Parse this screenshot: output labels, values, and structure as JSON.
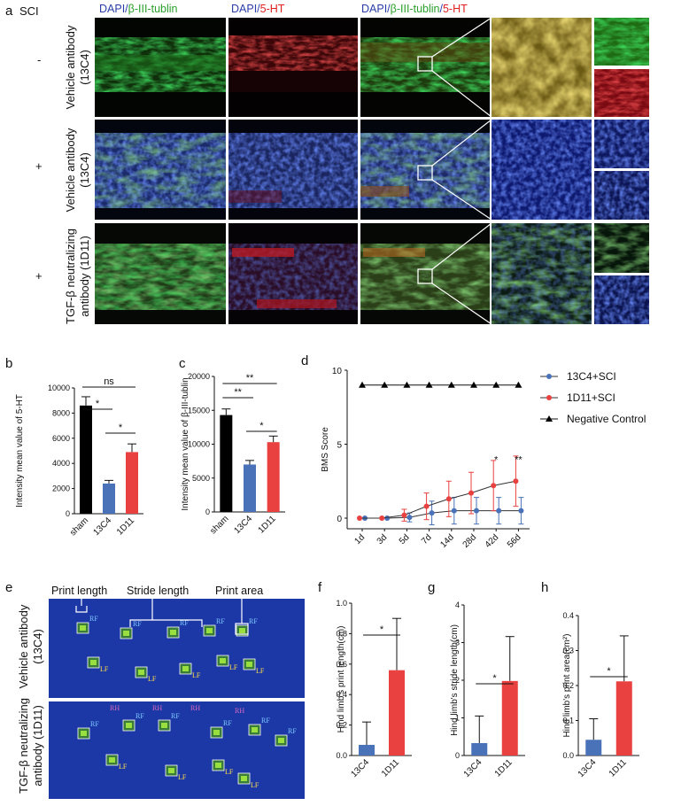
{
  "panel_letters": [
    "a",
    "b",
    "c",
    "d",
    "e",
    "f",
    "g",
    "h"
  ],
  "panel_a": {
    "sci_header": "SCI",
    "column_titles": [
      [
        {
          "text": "DAPI/",
          "color": "#2b3ea8"
        },
        {
          "text": "β-III-tublin",
          "color": "#2aa02a"
        }
      ],
      [
        {
          "text": "DAPI/",
          "color": "#2b3ea8"
        },
        {
          "text": "5-HT",
          "color": "#e02020"
        }
      ],
      [
        {
          "text": "DAPI/",
          "color": "#2b3ea8"
        },
        {
          "text": "β-III-tublin",
          "color": "#2aa02a"
        },
        {
          "text": "/",
          "color": "#2b3ea8"
        },
        {
          "text": "5-HT",
          "color": "#e02020"
        }
      ]
    ],
    "rows": [
      {
        "sci": "-",
        "label_lines": [
          "Vehicle antibody",
          "(13C4)"
        ]
      },
      {
        "sci": "+",
        "label_lines": [
          "Vehicle antibody",
          "(13C4)"
        ]
      },
      {
        "sci": "+",
        "label_lines": [
          "TGF-β neutralizing",
          "antibody (1D11)"
        ]
      }
    ]
  },
  "panel_e": {
    "annotations": [
      "Print length",
      "Stride length",
      "Print area"
    ],
    "row_labels": [
      [
        "Vehicle antibody",
        "(13C4)"
      ],
      [
        "TGF-β neutralizing",
        "antibody (1D11)"
      ]
    ],
    "paw_tags": {
      "rf": "RF",
      "lf": "LF",
      "rh": "RH"
    }
  },
  "colors": {
    "sham": "#000000",
    "c13C4": "#4a72b8",
    "c1D11": "#e8413f",
    "negative": "#000000",
    "track_bg": "#1c37a6"
  },
  "chart_data": [
    {
      "id": "b",
      "type": "bar",
      "ylabel": "Intensity mean value of 5-HT",
      "categories": [
        "sham",
        "13C4",
        "1D11"
      ],
      "values": [
        8600,
        2400,
        4900
      ],
      "errors": [
        700,
        250,
        650
      ],
      "ylim": [
        0,
        10000
      ],
      "yticks": [
        "0",
        "2000",
        "4000",
        "6000",
        "8000",
        "10000"
      ],
      "significance": [
        {
          "from": 0,
          "to": 1,
          "text": "*"
        },
        {
          "from": 1,
          "to": 2,
          "text": "*"
        },
        {
          "from": 0,
          "to": 2,
          "text": "ns"
        }
      ]
    },
    {
      "id": "c",
      "type": "bar",
      "ylabel": "Intensity mean value of β-III-tublin",
      "categories": [
        "sham",
        "13C4",
        "1D11"
      ],
      "values": [
        14300,
        7000,
        10300
      ],
      "errors": [
        900,
        600,
        900
      ],
      "ylim": [
        0,
        20000
      ],
      "yticks": [
        "0",
        "5000",
        "10000",
        "15000",
        "20000"
      ],
      "significance": [
        {
          "from": 0,
          "to": 1,
          "text": "**"
        },
        {
          "from": 1,
          "to": 2,
          "text": "*"
        },
        {
          "from": 0,
          "to": 2,
          "text": "**"
        }
      ]
    },
    {
      "id": "d",
      "type": "line",
      "ylabel": "BMS Score",
      "categories": [
        "1d",
        "3d",
        "5d",
        "7d",
        "14d",
        "28d",
        "42d",
        "56d"
      ],
      "ylim": [
        0,
        10
      ],
      "yticks": [
        "0",
        "5",
        "10"
      ],
      "series": [
        {
          "name": "13C4+SCI",
          "values": [
            0,
            0,
            0.05,
            0.35,
            0.5,
            0.5,
            0.5,
            0.5
          ],
          "errors": [
            0,
            0,
            0.3,
            0.8,
            0.9,
            0.9,
            0.9,
            0.9
          ]
        },
        {
          "name": "1D11+SCI",
          "values": [
            0,
            0,
            0.2,
            0.8,
            1.3,
            1.7,
            2.2,
            2.5
          ],
          "errors": [
            0,
            0,
            0.4,
            0.9,
            1.2,
            1.4,
            1.7,
            1.7
          ]
        },
        {
          "name": "Negative Control",
          "values": [
            9,
            9,
            9,
            9,
            9,
            9,
            9,
            9
          ],
          "errors": [
            0,
            0,
            0,
            0,
            0,
            0,
            0,
            0
          ]
        }
      ],
      "significance": [
        {
          "index": 6,
          "text": "*"
        },
        {
          "index": 7,
          "text": "**"
        }
      ]
    },
    {
      "id": "f",
      "type": "bar",
      "ylabel": "Hind limb's print length(cm)",
      "categories": [
        "13C4",
        "1D11"
      ],
      "values": [
        0.07,
        0.56
      ],
      "errors": [
        0.15,
        0.34
      ],
      "ylim": [
        0,
        1.0
      ],
      "yticks": [
        "0.0",
        "0.2",
        "0.4",
        "0.6",
        "0.8",
        "1.0"
      ],
      "significance": [
        {
          "from": 0,
          "to": 1,
          "text": "*"
        }
      ]
    },
    {
      "id": "g",
      "type": "bar",
      "ylabel": "Hind limb's stride length(cm)",
      "categories": [
        "13C4",
        "1D11"
      ],
      "values": [
        0.33,
        1.98
      ],
      "errors": [
        0.72,
        1.18
      ],
      "ylim": [
        0,
        4
      ],
      "yticks": [
        "0",
        "1",
        "2",
        "3",
        "4"
      ],
      "significance": [
        {
          "from": 0,
          "to": 1,
          "text": "*"
        }
      ]
    },
    {
      "id": "h",
      "type": "bar",
      "ylabel": "Hind limb's print area(cm²)",
      "categories": [
        "13C4",
        "1D11"
      ],
      "values": [
        0.045,
        0.212
      ],
      "errors": [
        0.06,
        0.13
      ],
      "ylim": [
        0,
        0.4
      ],
      "yticks": [
        "0.0",
        "0.1",
        "0.2",
        "0.3",
        "0.4"
      ],
      "significance": [
        {
          "from": 0,
          "to": 1,
          "text": "*"
        }
      ]
    }
  ]
}
